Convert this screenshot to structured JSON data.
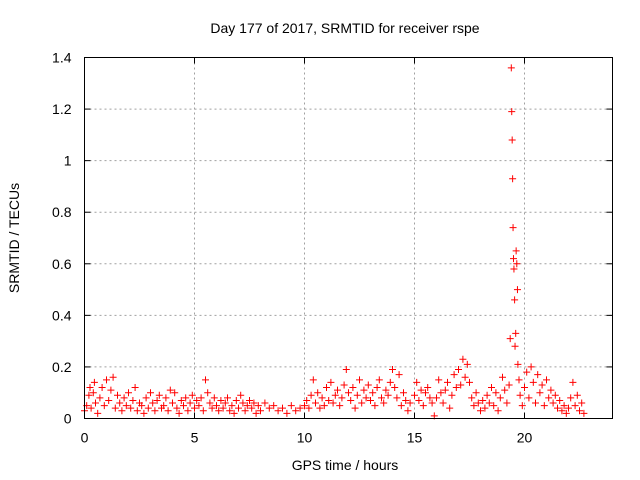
{
  "chart_data": {
    "type": "scatter",
    "title": "Day 177 of 2017, SRMTID for receiver rspe",
    "xlabel": "GPS time / hours",
    "ylabel": "SRMTID / TECUs",
    "xlim": [
      0,
      24
    ],
    "ylim": [
      0,
      1.4
    ],
    "xticks": [
      0,
      5,
      10,
      15,
      20
    ],
    "xtick_labels": [
      "0",
      "5",
      "10",
      "15",
      "20"
    ],
    "yticks": [
      0,
      0.2,
      0.4,
      0.6,
      0.8,
      1.0,
      1.2,
      1.4
    ],
    "ytick_labels": [
      "0",
      "0.2",
      "0.4",
      "0.6",
      "0.8",
      "1",
      "1.2",
      "1.4"
    ],
    "grid": true,
    "marker": "+",
    "color": "#ff0000",
    "series": [
      {
        "name": "SRMTID",
        "points": [
          [
            0.0,
            0.03
          ],
          [
            0.1,
            0.05
          ],
          [
            0.2,
            0.09
          ],
          [
            0.25,
            0.12
          ],
          [
            0.3,
            0.04
          ],
          [
            0.4,
            0.1
          ],
          [
            0.45,
            0.14
          ],
          [
            0.5,
            0.06
          ],
          [
            0.6,
            0.02
          ],
          [
            0.7,
            0.08
          ],
          [
            0.8,
            0.12
          ],
          [
            0.9,
            0.05
          ],
          [
            1.0,
            0.15
          ],
          [
            1.1,
            0.07
          ],
          [
            1.2,
            0.11
          ],
          [
            1.3,
            0.16
          ],
          [
            1.4,
            0.04
          ],
          [
            1.5,
            0.09
          ],
          [
            1.6,
            0.06
          ],
          [
            1.7,
            0.03
          ],
          [
            1.8,
            0.08
          ],
          [
            1.9,
            0.05
          ],
          [
            2.0,
            0.1
          ],
          [
            2.1,
            0.04
          ],
          [
            2.2,
            0.07
          ],
          [
            2.3,
            0.12
          ],
          [
            2.4,
            0.03
          ],
          [
            2.5,
            0.06
          ],
          [
            2.6,
            0.05
          ],
          [
            2.7,
            0.02
          ],
          [
            2.8,
            0.08
          ],
          [
            2.9,
            0.04
          ],
          [
            3.0,
            0.1
          ],
          [
            3.1,
            0.06
          ],
          [
            3.2,
            0.03
          ],
          [
            3.3,
            0.07
          ],
          [
            3.4,
            0.09
          ],
          [
            3.5,
            0.04
          ],
          [
            3.6,
            0.05
          ],
          [
            3.7,
            0.08
          ],
          [
            3.8,
            0.03
          ],
          [
            3.9,
            0.11
          ],
          [
            4.0,
            0.06
          ],
          [
            4.1,
            0.1
          ],
          [
            4.2,
            0.04
          ],
          [
            4.3,
            0.02
          ],
          [
            4.4,
            0.07
          ],
          [
            4.5,
            0.05
          ],
          [
            4.6,
            0.08
          ],
          [
            4.7,
            0.03
          ],
          [
            4.8,
            0.06
          ],
          [
            4.9,
            0.09
          ],
          [
            5.0,
            0.04
          ],
          [
            5.1,
            0.07
          ],
          [
            5.2,
            0.05
          ],
          [
            5.3,
            0.08
          ],
          [
            5.4,
            0.03
          ],
          [
            5.5,
            0.15
          ],
          [
            5.6,
            0.1
          ],
          [
            5.7,
            0.06
          ],
          [
            5.8,
            0.04
          ],
          [
            5.9,
            0.08
          ],
          [
            6.0,
            0.05
          ],
          [
            6.1,
            0.03
          ],
          [
            6.2,
            0.07
          ],
          [
            6.3,
            0.04
          ],
          [
            6.4,
            0.06
          ],
          [
            6.5,
            0.08
          ],
          [
            6.6,
            0.03
          ],
          [
            6.7,
            0.05
          ],
          [
            6.8,
            0.02
          ],
          [
            6.9,
            0.07
          ],
          [
            7.0,
            0.04
          ],
          [
            7.1,
            0.09
          ],
          [
            7.2,
            0.06
          ],
          [
            7.3,
            0.03
          ],
          [
            7.4,
            0.05
          ],
          [
            7.5,
            0.07
          ],
          [
            7.6,
            0.04
          ],
          [
            7.7,
            0.06
          ],
          [
            7.8,
            0.02
          ],
          [
            7.9,
            0.05
          ],
          [
            8.0,
            0.03
          ],
          [
            8.2,
            0.06
          ],
          [
            8.4,
            0.04
          ],
          [
            8.6,
            0.05
          ],
          [
            8.8,
            0.03
          ],
          [
            9.0,
            0.04
          ],
          [
            9.2,
            0.02
          ],
          [
            9.4,
            0.05
          ],
          [
            9.6,
            0.03
          ],
          [
            9.8,
            0.04
          ],
          [
            10.0,
            0.05
          ],
          [
            10.1,
            0.07
          ],
          [
            10.2,
            0.04
          ],
          [
            10.3,
            0.09
          ],
          [
            10.4,
            0.15
          ],
          [
            10.5,
            0.06
          ],
          [
            10.6,
            0.1
          ],
          [
            10.7,
            0.04
          ],
          [
            10.8,
            0.08
          ],
          [
            10.9,
            0.05
          ],
          [
            11.0,
            0.12
          ],
          [
            11.1,
            0.07
          ],
          [
            11.2,
            0.14
          ],
          [
            11.3,
            0.06
          ],
          [
            11.4,
            0.09
          ],
          [
            11.5,
            0.11
          ],
          [
            11.6,
            0.05
          ],
          [
            11.7,
            0.08
          ],
          [
            11.8,
            0.13
          ],
          [
            11.9,
            0.19
          ],
          [
            12.0,
            0.1
          ],
          [
            12.1,
            0.07
          ],
          [
            12.2,
            0.12
          ],
          [
            12.3,
            0.04
          ],
          [
            12.4,
            0.09
          ],
          [
            12.5,
            0.15
          ],
          [
            12.6,
            0.06
          ],
          [
            12.7,
            0.11
          ],
          [
            12.8,
            0.08
          ],
          [
            12.9,
            0.13
          ],
          [
            13.0,
            0.07
          ],
          [
            13.1,
            0.1
          ],
          [
            13.2,
            0.05
          ],
          [
            13.3,
            0.12
          ],
          [
            13.4,
            0.15
          ],
          [
            13.5,
            0.08
          ],
          [
            13.6,
            0.06
          ],
          [
            13.7,
            0.11
          ],
          [
            13.8,
            0.09
          ],
          [
            13.9,
            0.14
          ],
          [
            14.0,
            0.19
          ],
          [
            14.1,
            0.12
          ],
          [
            14.2,
            0.08
          ],
          [
            14.3,
            0.17
          ],
          [
            14.4,
            0.05
          ],
          [
            14.5,
            0.1
          ],
          [
            14.6,
            0.07
          ],
          [
            14.7,
            0.03
          ],
          [
            14.8,
            0.06
          ],
          [
            15.0,
            0.09
          ],
          [
            15.1,
            0.14
          ],
          [
            15.2,
            0.07
          ],
          [
            15.3,
            0.11
          ],
          [
            15.4,
            0.05
          ],
          [
            15.5,
            0.1
          ],
          [
            15.6,
            0.12
          ],
          [
            15.7,
            0.08
          ],
          [
            15.8,
            0.06
          ],
          [
            15.9,
            0.01
          ],
          [
            16.0,
            0.08
          ],
          [
            16.1,
            0.15
          ],
          [
            16.2,
            0.1
          ],
          [
            16.3,
            0.06
          ],
          [
            16.4,
            0.11
          ],
          [
            16.5,
            0.14
          ],
          [
            16.6,
            0.04
          ],
          [
            16.7,
            0.09
          ],
          [
            16.8,
            0.17
          ],
          [
            16.9,
            0.12
          ],
          [
            17.0,
            0.19
          ],
          [
            17.1,
            0.13
          ],
          [
            17.2,
            0.23
          ],
          [
            17.3,
            0.16
          ],
          [
            17.4,
            0.21
          ],
          [
            17.5,
            0.14
          ],
          [
            17.6,
            0.08
          ],
          [
            17.7,
            0.05
          ],
          [
            17.8,
            0.1
          ],
          [
            17.9,
            0.06
          ],
          [
            18.0,
            0.03
          ],
          [
            18.1,
            0.07
          ],
          [
            18.2,
            0.04
          ],
          [
            18.3,
            0.09
          ],
          [
            18.4,
            0.06
          ],
          [
            18.5,
            0.12
          ],
          [
            18.6,
            0.05
          ],
          [
            18.7,
            0.1
          ],
          [
            18.8,
            0.03
          ],
          [
            18.9,
            0.08
          ],
          [
            19.0,
            0.16
          ],
          [
            19.1,
            0.11
          ],
          [
            19.2,
            0.06
          ],
          [
            19.3,
            0.13
          ],
          [
            19.35,
            0.31
          ],
          [
            19.4,
            1.36
          ],
          [
            19.42,
            1.19
          ],
          [
            19.44,
            1.08
          ],
          [
            19.46,
            0.93
          ],
          [
            19.48,
            0.74
          ],
          [
            19.5,
            0.62
          ],
          [
            19.52,
            0.58
          ],
          [
            19.55,
            0.46
          ],
          [
            19.57,
            0.28
          ],
          [
            19.6,
            0.33
          ],
          [
            19.62,
            0.65
          ],
          [
            19.65,
            0.6
          ],
          [
            19.68,
            0.5
          ],
          [
            19.7,
            0.21
          ],
          [
            19.75,
            0.15
          ],
          [
            19.8,
            0.09
          ],
          [
            19.9,
            0.05
          ],
          [
            20.0,
            0.12
          ],
          [
            20.1,
            0.18
          ],
          [
            20.2,
            0.08
          ],
          [
            20.3,
            0.2
          ],
          [
            20.4,
            0.14
          ],
          [
            20.5,
            0.06
          ],
          [
            20.6,
            0.17
          ],
          [
            20.7,
            0.1
          ],
          [
            20.8,
            0.13
          ],
          [
            20.9,
            0.05
          ],
          [
            21.0,
            0.15
          ],
          [
            21.1,
            0.08
          ],
          [
            21.2,
            0.11
          ],
          [
            21.3,
            0.06
          ],
          [
            21.4,
            0.09
          ],
          [
            21.5,
            0.04
          ],
          [
            21.6,
            0.07
          ],
          [
            21.7,
            0.03
          ],
          [
            21.8,
            0.05
          ],
          [
            21.9,
            0.02
          ],
          [
            22.0,
            0.04
          ],
          [
            22.1,
            0.08
          ],
          [
            22.2,
            0.14
          ],
          [
            22.3,
            0.05
          ],
          [
            22.4,
            0.09
          ],
          [
            22.5,
            0.03
          ],
          [
            22.6,
            0.06
          ],
          [
            22.7,
            0.02
          ]
        ]
      }
    ]
  }
}
